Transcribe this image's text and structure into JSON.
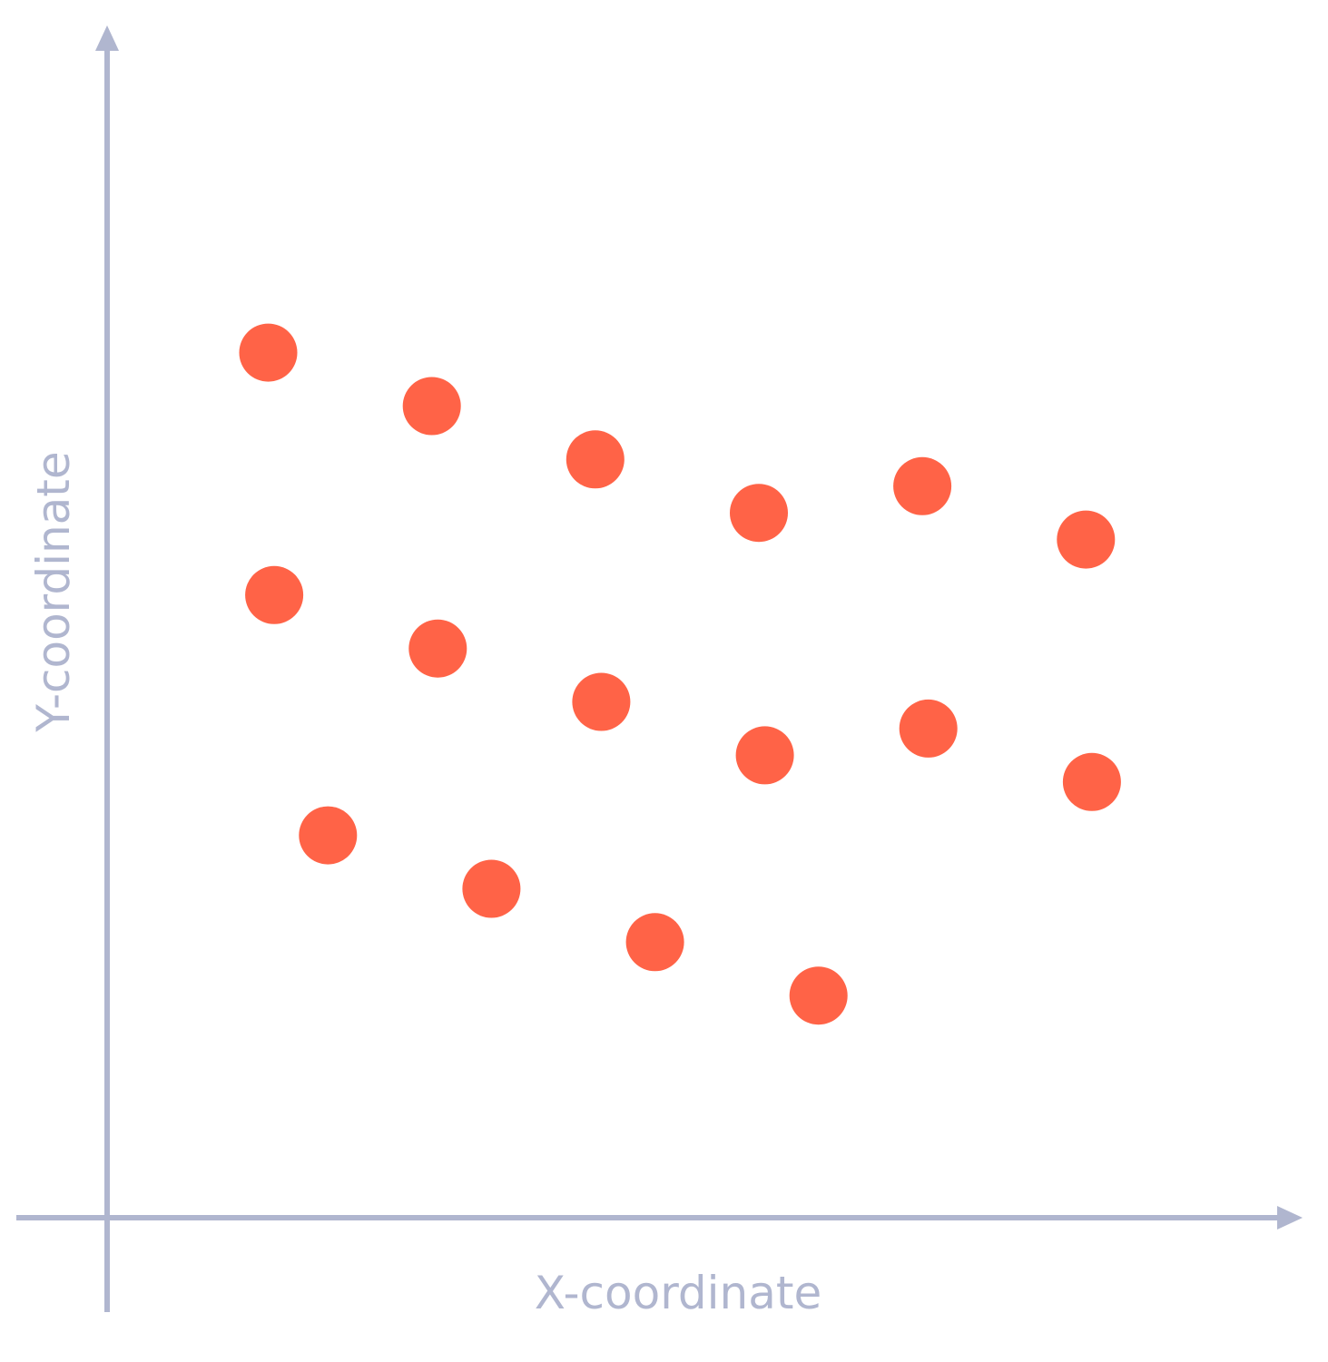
{
  "chart_data": {
    "type": "scatter",
    "xlabel": "X-coordinate",
    "ylabel": "Y-coordinate",
    "xlim": [
      0,
      10
    ],
    "ylim": [
      0,
      10
    ],
    "grid": false,
    "tick_labels": false,
    "point_color": "#ff6347",
    "axis_color": "#b0b6cf",
    "series": [
      {
        "points": [
          {
            "x": 1.35,
            "y": 8.1
          },
          {
            "x": 2.72,
            "y": 7.6
          },
          {
            "x": 4.09,
            "y": 7.1
          },
          {
            "x": 5.46,
            "y": 6.6
          },
          {
            "x": 6.83,
            "y": 6.85
          },
          {
            "x": 8.2,
            "y": 6.35
          },
          {
            "x": 1.4,
            "y": 5.83
          },
          {
            "x": 2.77,
            "y": 5.33
          },
          {
            "x": 4.14,
            "y": 4.83
          },
          {
            "x": 5.51,
            "y": 4.33
          },
          {
            "x": 6.88,
            "y": 4.58
          },
          {
            "x": 8.25,
            "y": 4.08
          },
          {
            "x": 1.85,
            "y": 3.58
          },
          {
            "x": 3.22,
            "y": 3.08
          },
          {
            "x": 4.59,
            "y": 2.58
          },
          {
            "x": 5.96,
            "y": 2.08
          }
        ]
      }
    ]
  }
}
